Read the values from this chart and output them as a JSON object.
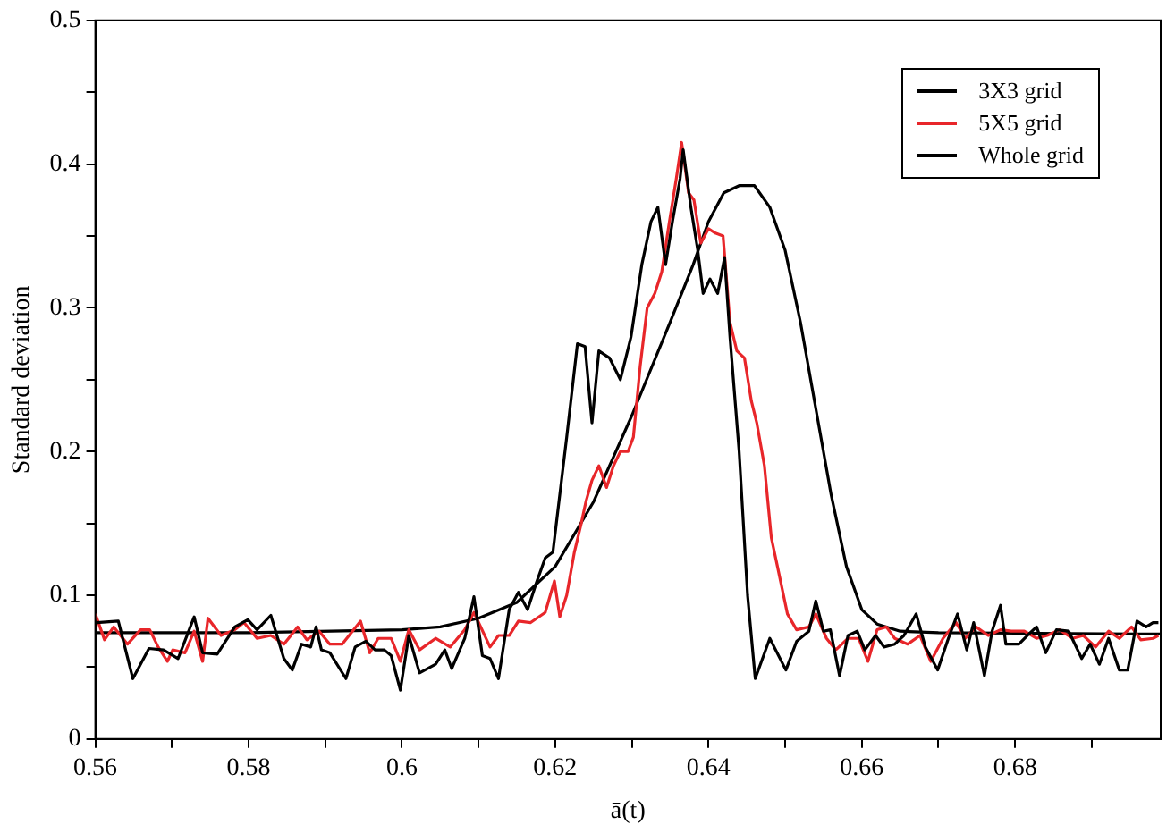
{
  "chart_data": {
    "type": "line",
    "xlabel": "ā(t)",
    "ylabel": "Standard deviation",
    "xlim": [
      0.56,
      0.699
    ],
    "ylim": [
      0,
      0.5
    ],
    "xticks": [
      0.56,
      {
        "value": 0.57,
        "label": null
      },
      0.58,
      {
        "value": 0.59,
        "label": null
      },
      0.6,
      {
        "value": 0.61,
        "label": null
      },
      0.62,
      {
        "value": 0.63,
        "label": null
      },
      0.64,
      {
        "value": 0.65,
        "label": null
      },
      0.66,
      {
        "value": 0.67,
        "label": null
      },
      0.68,
      {
        "value": 0.69,
        "label": null
      }
    ],
    "yticks": [
      0,
      {
        "value": 0.05,
        "label": null
      },
      0.1,
      {
        "value": 0.15,
        "label": null
      },
      0.2,
      {
        "value": 0.25,
        "label": null
      },
      0.3,
      {
        "value": 0.35,
        "label": null
      },
      0.4,
      {
        "value": 0.45,
        "label": null
      },
      0.5
    ],
    "grid": false,
    "legend": "top right",
    "marker": "none",
    "line_style": "solid",
    "series": [
      {
        "name": "3X3 grid",
        "color": "#000000",
        "x": [
          0.5602,
          0.563,
          0.5649,
          0.567,
          0.5689,
          0.5708,
          0.5729,
          0.574,
          0.5759,
          0.5782,
          0.5799,
          0.5811,
          0.5829,
          0.5846,
          0.5857,
          0.5869,
          0.5881,
          0.5888,
          0.5895,
          0.5906,
          0.5927,
          0.5939,
          0.5953,
          0.5965,
          0.5977,
          0.5986,
          0.5998,
          0.6009,
          0.6023,
          0.6044,
          0.6056,
          0.6065,
          0.6082,
          0.6094,
          0.6105,
          0.6115,
          0.6126,
          0.614,
          0.6152,
          0.6164,
          0.6175,
          0.6187,
          0.6197,
          0.6215,
          0.6229,
          0.6239,
          0.6248,
          0.6257,
          0.6271,
          0.6285,
          0.6299,
          0.6313,
          0.6325,
          0.6334,
          0.6344,
          0.6353,
          0.6363,
          0.6367,
          0.6377,
          0.6386,
          0.6393,
          0.6402,
          0.6412,
          0.6421,
          0.6428,
          0.644,
          0.6451,
          0.6461,
          0.648,
          0.6501,
          0.6515,
          0.6531,
          0.654,
          0.655,
          0.6559,
          0.6571,
          0.6582,
          0.6594,
          0.6604,
          0.6618,
          0.6629,
          0.6643,
          0.6655,
          0.6671,
          0.6683,
          0.6699,
          0.6713,
          0.6725,
          0.6737,
          0.6746,
          0.676,
          0.677,
          0.6781,
          0.6788,
          0.6805,
          0.6816,
          0.6828,
          0.684,
          0.6854,
          0.687,
          0.6887,
          0.6898,
          0.691,
          0.6922,
          0.6936,
          0.6947,
          0.6959,
          0.6971,
          0.698,
          0.6987
        ],
        "values": [
          0.081,
          0.082,
          0.042,
          0.063,
          0.062,
          0.056,
          0.085,
          0.06,
          0.059,
          0.078,
          0.083,
          0.076,
          0.086,
          0.056,
          0.048,
          0.066,
          0.064,
          0.078,
          0.062,
          0.06,
          0.042,
          0.064,
          0.068,
          0.062,
          0.062,
          0.058,
          0.034,
          0.072,
          0.046,
          0.052,
          0.062,
          0.049,
          0.07,
          0.099,
          0.058,
          0.056,
          0.042,
          0.09,
          0.102,
          0.09,
          0.108,
          0.126,
          0.13,
          0.21,
          0.275,
          0.273,
          0.22,
          0.27,
          0.265,
          0.25,
          0.28,
          0.33,
          0.36,
          0.37,
          0.33,
          0.36,
          0.39,
          0.41,
          0.37,
          0.34,
          0.31,
          0.32,
          0.31,
          0.335,
          0.28,
          0.2,
          0.1,
          0.042,
          0.07,
          0.048,
          0.068,
          0.075,
          0.096,
          0.075,
          0.076,
          0.044,
          0.072,
          0.075,
          0.062,
          0.072,
          0.064,
          0.066,
          0.072,
          0.087,
          0.064,
          0.048,
          0.07,
          0.087,
          0.062,
          0.081,
          0.044,
          0.075,
          0.093,
          0.066,
          0.066,
          0.072,
          0.078,
          0.06,
          0.076,
          0.075,
          0.056,
          0.066,
          0.052,
          0.07,
          0.048,
          0.048,
          0.082,
          0.078,
          0.081,
          0.081
        ]
      },
      {
        "name": "5X5 grid",
        "color": "#e8262a",
        "x": [
          0.56,
          0.5612,
          0.5624,
          0.5642,
          0.5659,
          0.5671,
          0.5682,
          0.5694,
          0.5701,
          0.5717,
          0.5729,
          0.574,
          0.5747,
          0.5764,
          0.5782,
          0.5794,
          0.5811,
          0.5829,
          0.5846,
          0.5864,
          0.5876,
          0.5892,
          0.5906,
          0.5922,
          0.5946,
          0.5958,
          0.5969,
          0.5986,
          0.5998,
          0.6009,
          0.6023,
          0.6044,
          0.6063,
          0.6082,
          0.6094,
          0.6115,
          0.6126,
          0.614,
          0.6152,
          0.6168,
          0.6187,
          0.6199,
          0.6206,
          0.6215,
          0.6225,
          0.6234,
          0.624,
          0.6248,
          0.6257,
          0.6267,
          0.6276,
          0.6285,
          0.6295,
          0.6302,
          0.6311,
          0.632,
          0.633,
          0.6339,
          0.6349,
          0.6358,
          0.6365,
          0.6374,
          0.6381,
          0.639,
          0.64,
          0.6409,
          0.6419,
          0.6428,
          0.6437,
          0.6447,
          0.6456,
          0.6463,
          0.6473,
          0.6482,
          0.649,
          0.6503,
          0.6515,
          0.6531,
          0.654,
          0.6554,
          0.6566,
          0.6582,
          0.6596,
          0.6608,
          0.662,
          0.6632,
          0.6643,
          0.666,
          0.6676,
          0.669,
          0.6706,
          0.6723,
          0.6735,
          0.6749,
          0.6765,
          0.6781,
          0.6795,
          0.6812,
          0.6828,
          0.6842,
          0.6858,
          0.6875,
          0.6889,
          0.6905,
          0.6922,
          0.6936,
          0.6952,
          0.6964,
          0.698,
          0.6987
        ],
        "values": [
          0.087,
          0.069,
          0.078,
          0.066,
          0.076,
          0.076,
          0.064,
          0.054,
          0.062,
          0.06,
          0.075,
          0.054,
          0.084,
          0.072,
          0.076,
          0.081,
          0.07,
          0.072,
          0.066,
          0.078,
          0.069,
          0.075,
          0.066,
          0.066,
          0.082,
          0.06,
          0.07,
          0.07,
          0.054,
          0.076,
          0.062,
          0.07,
          0.064,
          0.076,
          0.088,
          0.064,
          0.072,
          0.072,
          0.082,
          0.081,
          0.088,
          0.11,
          0.085,
          0.1,
          0.13,
          0.15,
          0.165,
          0.18,
          0.19,
          0.175,
          0.19,
          0.2,
          0.2,
          0.21,
          0.26,
          0.3,
          0.31,
          0.325,
          0.36,
          0.39,
          0.415,
          0.38,
          0.375,
          0.345,
          0.355,
          0.352,
          0.35,
          0.29,
          0.27,
          0.265,
          0.235,
          0.22,
          0.19,
          0.14,
          0.12,
          0.087,
          0.076,
          0.078,
          0.087,
          0.07,
          0.062,
          0.07,
          0.07,
          0.054,
          0.076,
          0.078,
          0.07,
          0.066,
          0.072,
          0.054,
          0.07,
          0.081,
          0.07,
          0.078,
          0.072,
          0.076,
          0.075,
          0.075,
          0.07,
          0.072,
          0.076,
          0.07,
          0.072,
          0.064,
          0.075,
          0.07,
          0.078,
          0.069,
          0.07,
          0.072
        ]
      },
      {
        "name": "Whole grid",
        "color": "#000000",
        "x": [
          0.56,
          0.58,
          0.6,
          0.605,
          0.61,
          0.615,
          0.62,
          0.625,
          0.63,
          0.635,
          0.638,
          0.64,
          0.642,
          0.644,
          0.646,
          0.648,
          0.65,
          0.652,
          0.654,
          0.656,
          0.658,
          0.66,
          0.662,
          0.665,
          0.67,
          0.699
        ],
        "values": [
          0.074,
          0.074,
          0.076,
          0.078,
          0.084,
          0.095,
          0.12,
          0.165,
          0.225,
          0.29,
          0.33,
          0.36,
          0.38,
          0.385,
          0.385,
          0.37,
          0.34,
          0.29,
          0.23,
          0.17,
          0.12,
          0.09,
          0.08,
          0.075,
          0.074,
          0.073
        ]
      }
    ]
  }
}
